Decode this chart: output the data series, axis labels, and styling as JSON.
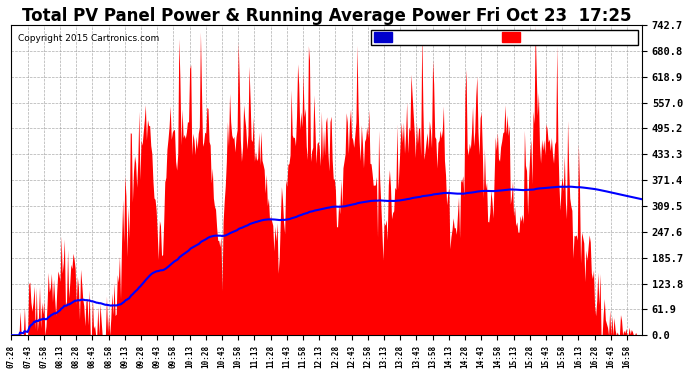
{
  "title": "Total PV Panel Power & Running Average Power Fri Oct 23  17:25",
  "copyright": "Copyright 2015 Cartronics.com",
  "ylabel_right_values": [
    0.0,
    61.9,
    123.8,
    185.7,
    247.6,
    309.5,
    371.4,
    433.3,
    495.2,
    557.0,
    618.9,
    680.8,
    742.7
  ],
  "ymax": 742.7,
  "ymin": 0.0,
  "fill_color": "#FF0000",
  "line_color": "#0000FF",
  "background_color": "#FFFFFF",
  "plot_bg_color": "#FFFFFF",
  "grid_color": "#999999",
  "title_fontsize": 12,
  "legend_avg_color": "#0000CC",
  "legend_pv_color": "#FF0000",
  "start_time": "07:28",
  "end_time": "17:13",
  "tick_interval_min": 15
}
